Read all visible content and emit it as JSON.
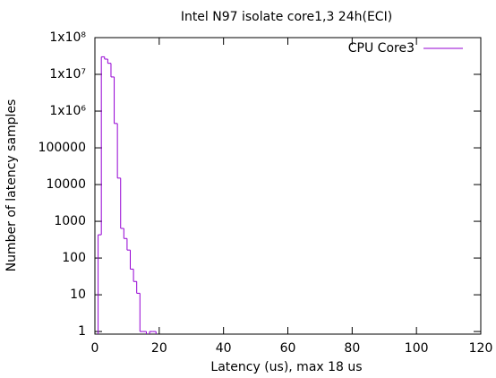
{
  "chart_data": {
    "type": "histogram",
    "title": "Intel N97 isolate core1,3 24h(ECI)",
    "x_label": "Latency (us), max 18 us",
    "y_label": "Number of latency samples",
    "bins": [
      1,
      2,
      3,
      4,
      5,
      6,
      7,
      8,
      9,
      10,
      11,
      12,
      13,
      14,
      15,
      16,
      17,
      18,
      19
    ],
    "series": [
      {
        "name": "CPU Core3",
        "color": "#9400d3",
        "values": [
          430,
          30000000,
          26000000,
          20000000,
          8500000,
          460000,
          15000,
          640,
          340,
          165,
          50,
          23,
          11,
          1,
          1,
          null,
          1,
          1
        ]
      }
    ],
    "xlim": [
      0,
      120
    ],
    "xticks": [
      0,
      20,
      40,
      60,
      80,
      100,
      120
    ],
    "ylim": [
      0.85,
      100000000
    ],
    "log_y": true,
    "yticks": [
      1,
      10,
      100,
      1000,
      10000,
      100000,
      {
        "value": 1000000,
        "label": "1x10⁶"
      },
      {
        "value": 10000000,
        "label": "1x10⁷"
      },
      {
        "value": 100000000,
        "label": "1x10⁸"
      }
    ],
    "grid": false,
    "legend": "top-right"
  }
}
